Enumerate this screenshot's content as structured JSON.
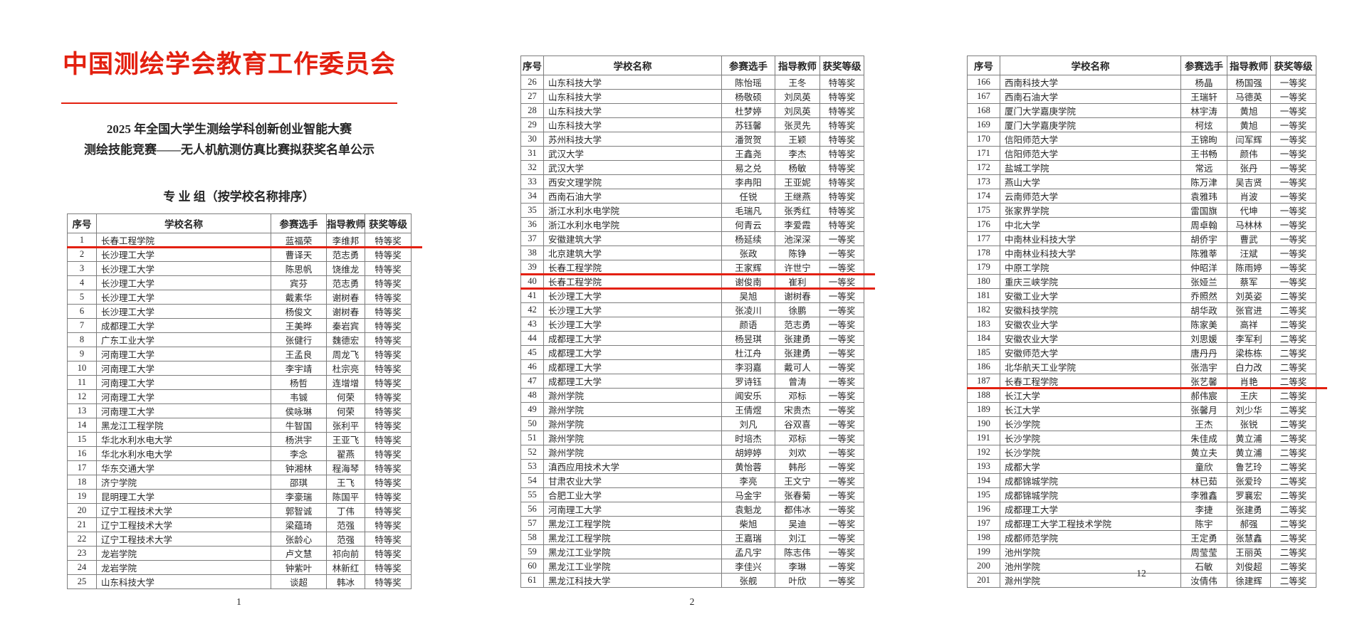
{
  "letterhead": {
    "org_title": "中国测绘学会教育工作委员会",
    "subtitle_line1": "2025 年全国大学生测绘学科创新创业智能大赛",
    "subtitle_line2": "测绘技能竞赛——无人机航测仿真比赛拟获奖名单公示",
    "section_heading": "专 业 组（按学校名称排序）"
  },
  "colors": {
    "accent_red": "#e3200f"
  },
  "table_headers": [
    "序号",
    "学校名称",
    "参赛选手",
    "指导教师",
    "获奖等级"
  ],
  "pages": [
    {
      "page_number": "1",
      "rows": [
        {
          "no": "1",
          "school": "长春工程学院",
          "contestant": "蓝福荣",
          "teacher": "李维邦",
          "award": "特等奖",
          "underline": true
        },
        {
          "no": "2",
          "school": "长沙理工大学",
          "contestant": "曹译天",
          "teacher": "范志勇",
          "award": "特等奖"
        },
        {
          "no": "3",
          "school": "长沙理工大学",
          "contestant": "陈思帆",
          "teacher": "饶维龙",
          "award": "特等奖"
        },
        {
          "no": "4",
          "school": "长沙理工大学",
          "contestant": "宾芬",
          "teacher": "范志勇",
          "award": "特等奖"
        },
        {
          "no": "5",
          "school": "长沙理工大学",
          "contestant": "戴素华",
          "teacher": "谢树春",
          "award": "特等奖"
        },
        {
          "no": "6",
          "school": "长沙理工大学",
          "contestant": "杨俊文",
          "teacher": "谢树春",
          "award": "特等奖"
        },
        {
          "no": "7",
          "school": "成都理工大学",
          "contestant": "王美晔",
          "teacher": "秦岩宾",
          "award": "特等奖"
        },
        {
          "no": "8",
          "school": "广东工业大学",
          "contestant": "张健行",
          "teacher": "魏德宏",
          "award": "特等奖"
        },
        {
          "no": "9",
          "school": "河南理工大学",
          "contestant": "王孟良",
          "teacher": "周龙飞",
          "award": "特等奖"
        },
        {
          "no": "10",
          "school": "河南理工大学",
          "contestant": "李宇靖",
          "teacher": "杜宗亮",
          "award": "特等奖"
        },
        {
          "no": "11",
          "school": "河南理工大学",
          "contestant": "杨哲",
          "teacher": "连增增",
          "award": "特等奖"
        },
        {
          "no": "12",
          "school": "河南理工大学",
          "contestant": "韦铖",
          "teacher": "何荣",
          "award": "特等奖"
        },
        {
          "no": "13",
          "school": "河南理工大学",
          "contestant": "侯咏琳",
          "teacher": "何荣",
          "award": "特等奖"
        },
        {
          "no": "14",
          "school": "黑龙江工程学院",
          "contestant": "牛智国",
          "teacher": "张利平",
          "award": "特等奖"
        },
        {
          "no": "15",
          "school": "华北水利水电大学",
          "contestant": "杨洪宇",
          "teacher": "王亚飞",
          "award": "特等奖"
        },
        {
          "no": "16",
          "school": "华北水利水电大学",
          "contestant": "李念",
          "teacher": "翟燕",
          "award": "特等奖"
        },
        {
          "no": "17",
          "school": "华东交通大学",
          "contestant": "钟湘林",
          "teacher": "程海琴",
          "award": "特等奖"
        },
        {
          "no": "18",
          "school": "济宁学院",
          "contestant": "邵琪",
          "teacher": "王飞",
          "award": "特等奖"
        },
        {
          "no": "19",
          "school": "昆明理工大学",
          "contestant": "李豪瑞",
          "teacher": "陈国平",
          "award": "特等奖"
        },
        {
          "no": "20",
          "school": "辽宁工程技术大学",
          "contestant": "郭智诚",
          "teacher": "丁伟",
          "award": "特等奖"
        },
        {
          "no": "21",
          "school": "辽宁工程技术大学",
          "contestant": "梁蕴琦",
          "teacher": "范强",
          "award": "特等奖"
        },
        {
          "no": "22",
          "school": "辽宁工程技术大学",
          "contestant": "张龄心",
          "teacher": "范强",
          "award": "特等奖"
        },
        {
          "no": "23",
          "school": "龙岩学院",
          "contestant": "卢文慧",
          "teacher": "祁向前",
          "award": "特等奖"
        },
        {
          "no": "24",
          "school": "龙岩学院",
          "contestant": "钟紫叶",
          "teacher": "林新红",
          "award": "特等奖"
        },
        {
          "no": "25",
          "school": "山东科技大学",
          "contestant": "谈超",
          "teacher": "韩冰",
          "award": "特等奖"
        }
      ]
    },
    {
      "page_number": "2",
      "rows": [
        {
          "no": "26",
          "school": "山东科技大学",
          "contestant": "陈怡瑶",
          "teacher": "王冬",
          "award": "特等奖"
        },
        {
          "no": "27",
          "school": "山东科技大学",
          "contestant": "杨敬硕",
          "teacher": "刘凤英",
          "award": "特等奖"
        },
        {
          "no": "28",
          "school": "山东科技大学",
          "contestant": "杜梦婷",
          "teacher": "刘凤英",
          "award": "特等奖"
        },
        {
          "no": "29",
          "school": "山东科技大学",
          "contestant": "苏钰馨",
          "teacher": "张灵先",
          "award": "特等奖"
        },
        {
          "no": "30",
          "school": "苏州科技大学",
          "contestant": "潘贺贺",
          "teacher": "王颖",
          "award": "特等奖"
        },
        {
          "no": "31",
          "school": "武汉大学",
          "contestant": "王鑫尧",
          "teacher": "李杰",
          "award": "特等奖"
        },
        {
          "no": "32",
          "school": "武汉大学",
          "contestant": "易之兑",
          "teacher": "杨敏",
          "award": "特等奖"
        },
        {
          "no": "33",
          "school": "西安文理学院",
          "contestant": "李冉阳",
          "teacher": "王亚妮",
          "award": "特等奖"
        },
        {
          "no": "34",
          "school": "西南石油大学",
          "contestant": "任锐",
          "teacher": "王继燕",
          "award": "特等奖"
        },
        {
          "no": "35",
          "school": "浙江水利水电学院",
          "contestant": "毛瑞凡",
          "teacher": "张秀红",
          "award": "特等奖"
        },
        {
          "no": "36",
          "school": "浙江水利水电学院",
          "contestant": "何青云",
          "teacher": "李爱霞",
          "award": "特等奖"
        },
        {
          "no": "37",
          "school": "安徽建筑大学",
          "contestant": "杨延续",
          "teacher": "池深深",
          "award": "一等奖"
        },
        {
          "no": "38",
          "school": "北京建筑大学",
          "contestant": "张政",
          "teacher": "陈铮",
          "award": "一等奖"
        },
        {
          "no": "39",
          "school": "长春工程学院",
          "contestant": "王家辉",
          "teacher": "许世宁",
          "award": "一等奖",
          "underline": true
        },
        {
          "no": "40",
          "school": "长春工程学院",
          "contestant": "谢俊南",
          "teacher": "崔利",
          "award": "一等奖",
          "underline": true
        },
        {
          "no": "41",
          "school": "长沙理工大学",
          "contestant": "吴旭",
          "teacher": "谢树春",
          "award": "一等奖"
        },
        {
          "no": "42",
          "school": "长沙理工大学",
          "contestant": "张凌川",
          "teacher": "徐鹏",
          "award": "一等奖"
        },
        {
          "no": "43",
          "school": "长沙理工大学",
          "contestant": "颜语",
          "teacher": "范志勇",
          "award": "一等奖"
        },
        {
          "no": "44",
          "school": "成都理工大学",
          "contestant": "杨昱琪",
          "teacher": "张建勇",
          "award": "一等奖"
        },
        {
          "no": "45",
          "school": "成都理工大学",
          "contestant": "杜江舟",
          "teacher": "张建勇",
          "award": "一等奖"
        },
        {
          "no": "46",
          "school": "成都理工大学",
          "contestant": "李羽嘉",
          "teacher": "戴可人",
          "award": "一等奖"
        },
        {
          "no": "47",
          "school": "成都理工大学",
          "contestant": "罗诗钰",
          "teacher": "曾涛",
          "award": "一等奖"
        },
        {
          "no": "48",
          "school": "滁州学院",
          "contestant": "闻安乐",
          "teacher": "邓标",
          "award": "一等奖"
        },
        {
          "no": "49",
          "school": "滁州学院",
          "contestant": "王倩煜",
          "teacher": "宋贵杰",
          "award": "一等奖"
        },
        {
          "no": "50",
          "school": "滁州学院",
          "contestant": "刘凡",
          "teacher": "谷双喜",
          "award": "一等奖"
        },
        {
          "no": "51",
          "school": "滁州学院",
          "contestant": "时培杰",
          "teacher": "邓标",
          "award": "一等奖"
        },
        {
          "no": "52",
          "school": "滁州学院",
          "contestant": "胡婷婷",
          "teacher": "刘欢",
          "award": "一等奖"
        },
        {
          "no": "53",
          "school": "滇西应用技术大学",
          "contestant": "黄怡蓉",
          "teacher": "韩彤",
          "award": "一等奖"
        },
        {
          "no": "54",
          "school": "甘肃农业大学",
          "contestant": "李亮",
          "teacher": "王文宁",
          "award": "一等奖"
        },
        {
          "no": "55",
          "school": "合肥工业大学",
          "contestant": "马金宇",
          "teacher": "张春菊",
          "award": "一等奖"
        },
        {
          "no": "56",
          "school": "河南理工大学",
          "contestant": "袁魁龙",
          "teacher": "都伟冰",
          "award": "一等奖"
        },
        {
          "no": "57",
          "school": "黑龙江工程学院",
          "contestant": "柴旭",
          "teacher": "吴迪",
          "award": "一等奖"
        },
        {
          "no": "58",
          "school": "黑龙江工程学院",
          "contestant": "王嘉瑞",
          "teacher": "刘江",
          "award": "一等奖"
        },
        {
          "no": "59",
          "school": "黑龙江工业学院",
          "contestant": "孟凡宇",
          "teacher": "陈志伟",
          "award": "一等奖"
        },
        {
          "no": "60",
          "school": "黑龙江工业学院",
          "contestant": "李佳兴",
          "teacher": "李琳",
          "award": "一等奖"
        },
        {
          "no": "61",
          "school": "黑龙江科技大学",
          "contestant": "张舰",
          "teacher": "叶欣",
          "award": "一等奖"
        }
      ]
    },
    {
      "page_number": "12",
      "rows": [
        {
          "no": "166",
          "school": "西南科技大学",
          "contestant": "杨晶",
          "teacher": "杨国强",
          "award": "一等奖"
        },
        {
          "no": "167",
          "school": "西南石油大学",
          "contestant": "王瑞轩",
          "teacher": "马德英",
          "award": "一等奖"
        },
        {
          "no": "168",
          "school": "厦门大学嘉庚学院",
          "contestant": "林宇涛",
          "teacher": "黄旭",
          "award": "一等奖"
        },
        {
          "no": "169",
          "school": "厦门大学嘉庚学院",
          "contestant": "柯炫",
          "teacher": "黄旭",
          "award": "一等奖"
        },
        {
          "no": "170",
          "school": "信阳师范大学",
          "contestant": "王锦昫",
          "teacher": "闫军辉",
          "award": "一等奖"
        },
        {
          "no": "171",
          "school": "信阳师范大学",
          "contestant": "王书畅",
          "teacher": "颜伟",
          "award": "一等奖"
        },
        {
          "no": "172",
          "school": "盐城工学院",
          "contestant": "常远",
          "teacher": "张丹",
          "award": "一等奖"
        },
        {
          "no": "173",
          "school": "燕山大学",
          "contestant": "陈万津",
          "teacher": "吴吉贤",
          "award": "一等奖"
        },
        {
          "no": "174",
          "school": "云南师范大学",
          "contestant": "袁雅玮",
          "teacher": "肖波",
          "award": "一等奖"
        },
        {
          "no": "175",
          "school": "张家界学院",
          "contestant": "雷国旗",
          "teacher": "代坤",
          "award": "一等奖"
        },
        {
          "no": "176",
          "school": "中北大学",
          "contestant": "周卓翰",
          "teacher": "马林林",
          "award": "一等奖"
        },
        {
          "no": "177",
          "school": "中南林业科技大学",
          "contestant": "胡侨宇",
          "teacher": "曹武",
          "award": "一等奖"
        },
        {
          "no": "178",
          "school": "中南林业科技大学",
          "contestant": "陈雅莘",
          "teacher": "汪斌",
          "award": "一等奖"
        },
        {
          "no": "179",
          "school": "中原工学院",
          "contestant": "仲昭洋",
          "teacher": "陈雨婷",
          "award": "一等奖"
        },
        {
          "no": "180",
          "school": "重庆三峡学院",
          "contestant": "张娅兰",
          "teacher": "蔡军",
          "award": "一等奖"
        },
        {
          "no": "181",
          "school": "安徽工业大学",
          "contestant": "乔照然",
          "teacher": "刘英姿",
          "award": "二等奖"
        },
        {
          "no": "182",
          "school": "安徽科技学院",
          "contestant": "胡华政",
          "teacher": "张官进",
          "award": "二等奖"
        },
        {
          "no": "183",
          "school": "安徽农业大学",
          "contestant": "陈家美",
          "teacher": "高祥",
          "award": "二等奖"
        },
        {
          "no": "184",
          "school": "安徽农业大学",
          "contestant": "刘思媛",
          "teacher": "李军利",
          "award": "二等奖"
        },
        {
          "no": "185",
          "school": "安徽师范大学",
          "contestant": "唐丹丹",
          "teacher": "梁栋栋",
          "award": "二等奖"
        },
        {
          "no": "186",
          "school": "北华航天工业学院",
          "contestant": "张浩宇",
          "teacher": "白力改",
          "award": "二等奖"
        },
        {
          "no": "187",
          "school": "长春工程学院",
          "contestant": "张艺馨",
          "teacher": "肖艳",
          "award": "二等奖",
          "underline": true
        },
        {
          "no": "188",
          "school": "长江大学",
          "contestant": "郝伟宸",
          "teacher": "王庆",
          "award": "二等奖"
        },
        {
          "no": "189",
          "school": "长江大学",
          "contestant": "张馨月",
          "teacher": "刘少华",
          "award": "二等奖"
        },
        {
          "no": "190",
          "school": "长沙学院",
          "contestant": "王杰",
          "teacher": "张锐",
          "award": "二等奖"
        },
        {
          "no": "191",
          "school": "长沙学院",
          "contestant": "朱佳成",
          "teacher": "黄立浦",
          "award": "二等奖"
        },
        {
          "no": "192",
          "school": "长沙学院",
          "contestant": "黄立夫",
          "teacher": "黄立浦",
          "award": "二等奖"
        },
        {
          "no": "193",
          "school": "成都大学",
          "contestant": "童欣",
          "teacher": "鲁艺玲",
          "award": "二等奖"
        },
        {
          "no": "194",
          "school": "成都锦城学院",
          "contestant": "林已茹",
          "teacher": "张爱玲",
          "award": "二等奖"
        },
        {
          "no": "195",
          "school": "成都锦城学院",
          "contestant": "李雅鑫",
          "teacher": "罗襄宏",
          "award": "二等奖"
        },
        {
          "no": "196",
          "school": "成都理工大学",
          "contestant": "李捷",
          "teacher": "张建勇",
          "award": "二等奖"
        },
        {
          "no": "197",
          "school": "成都理工大学工程技术学院",
          "contestant": "陈宇",
          "teacher": "郝强",
          "award": "二等奖"
        },
        {
          "no": "198",
          "school": "成都师范学院",
          "contestant": "王定勇",
          "teacher": "张慧鑫",
          "award": "二等奖"
        },
        {
          "no": "199",
          "school": "池州学院",
          "contestant": "周莹莹",
          "teacher": "王丽英",
          "award": "二等奖"
        },
        {
          "no": "200",
          "school": "池州学院",
          "contestant": "石敏",
          "teacher": "刘俊超",
          "award": "二等奖"
        },
        {
          "no": "201",
          "school": "滁州学院",
          "contestant": "汝倩伟",
          "teacher": "徐建辉",
          "award": "二等奖"
        }
      ]
    }
  ]
}
